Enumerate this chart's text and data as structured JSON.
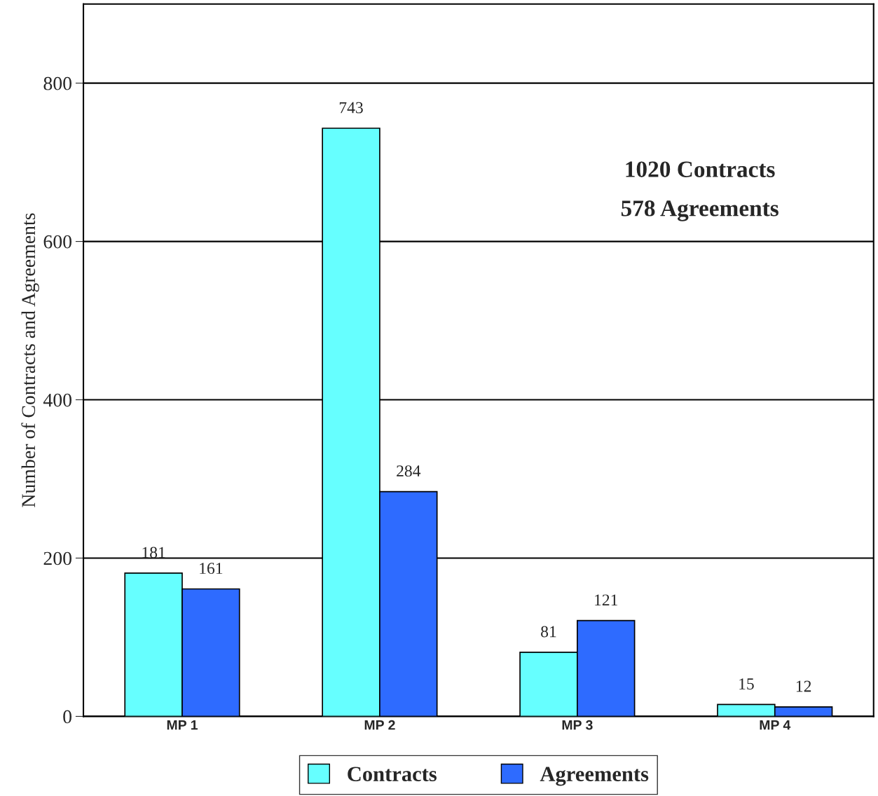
{
  "chart_data": {
    "type": "bar",
    "categories": [
      "MP 1",
      "MP 2",
      "MP 3",
      "MP 4"
    ],
    "series": [
      {
        "name": "Contracts",
        "color": "#66ffff",
        "values": [
          181,
          743,
          81,
          15
        ]
      },
      {
        "name": "Agreements",
        "color": "#2e6bff",
        "values": [
          161,
          284,
          121,
          12
        ]
      }
    ],
    "ylabel": "Number of Contracts and Agreements",
    "ylim": [
      0,
      900
    ],
    "yticks": [
      0,
      200,
      400,
      600,
      800
    ],
    "grid": "y",
    "legend": "bottom",
    "data_labels": true,
    "annotations": [
      "1020 Contracts",
      "578 Agreements"
    ]
  }
}
